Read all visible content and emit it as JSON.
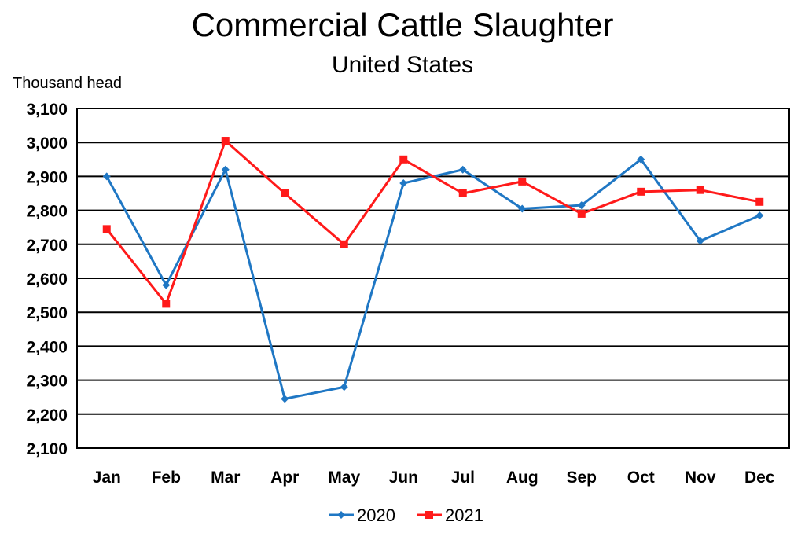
{
  "chart_data": {
    "type": "line",
    "title": "Commercial Cattle Slaughter",
    "subtitle": "United States",
    "ylabel": "Thousand head",
    "xlabel": "",
    "categories": [
      "Jan",
      "Feb",
      "Mar",
      "Apr",
      "May",
      "Jun",
      "Jul",
      "Aug",
      "Sep",
      "Oct",
      "Nov",
      "Dec"
    ],
    "ylim": [
      2100,
      3100
    ],
    "yticks": [
      2100,
      2200,
      2300,
      2400,
      2500,
      2600,
      2700,
      2800,
      2900,
      3000,
      3100
    ],
    "ytick_labels": [
      "2,100",
      "2,200",
      "2,300",
      "2,400",
      "2,500",
      "2,600",
      "2,700",
      "2,800",
      "2,900",
      "3,000",
      "3,100"
    ],
    "grid": true,
    "legend_position": "bottom",
    "series": [
      {
        "name": "2020",
        "color": "#1f77c4",
        "marker": "diamond",
        "values": [
          2900,
          2580,
          2920,
          2245,
          2280,
          2880,
          2920,
          2805,
          2815,
          2950,
          2710,
          2785
        ]
      },
      {
        "name": "2021",
        "color": "#ff1a1a",
        "marker": "square",
        "values": [
          2745,
          2525,
          3005,
          2850,
          2700,
          2950,
          2850,
          2885,
          2790,
          2855,
          2860,
          2825
        ]
      }
    ]
  }
}
